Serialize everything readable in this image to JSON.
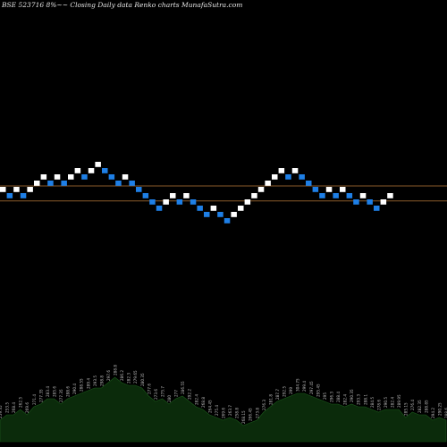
{
  "header": {
    "title": "BSE 523716  8%~~ Closing Daily data  Renko  charts MunafaSutra.com"
  },
  "colors": {
    "background": "#000000",
    "up_brick": "#ffffff",
    "down_brick": "#1e7fe6",
    "reference_line": "#8a5a2a",
    "volume_fill": "#0b2b0b",
    "volume_stroke": "#1b5a1b",
    "volume_label": "#bbbbbb"
  },
  "chart_data": {
    "type": "renko",
    "bricks": [
      {
        "level": 2,
        "dir": "up"
      },
      {
        "level": 1,
        "dir": "down"
      },
      {
        "level": 2,
        "dir": "up"
      },
      {
        "level": 1,
        "dir": "down"
      },
      {
        "level": 2,
        "dir": "up"
      },
      {
        "level": 3,
        "dir": "up"
      },
      {
        "level": 4,
        "dir": "up"
      },
      {
        "level": 3,
        "dir": "down"
      },
      {
        "level": 4,
        "dir": "up"
      },
      {
        "level": 3,
        "dir": "down"
      },
      {
        "level": 4,
        "dir": "up"
      },
      {
        "level": 5,
        "dir": "up"
      },
      {
        "level": 4,
        "dir": "down"
      },
      {
        "level": 5,
        "dir": "up"
      },
      {
        "level": 6,
        "dir": "up"
      },
      {
        "level": 5,
        "dir": "down"
      },
      {
        "level": 4,
        "dir": "down"
      },
      {
        "level": 3,
        "dir": "down"
      },
      {
        "level": 4,
        "dir": "up"
      },
      {
        "level": 3,
        "dir": "down"
      },
      {
        "level": 2,
        "dir": "down"
      },
      {
        "level": 1,
        "dir": "down"
      },
      {
        "level": 0,
        "dir": "down"
      },
      {
        "level": -1,
        "dir": "down"
      },
      {
        "level": 0,
        "dir": "up"
      },
      {
        "level": 1,
        "dir": "up"
      },
      {
        "level": 0,
        "dir": "down"
      },
      {
        "level": 1,
        "dir": "up"
      },
      {
        "level": 0,
        "dir": "down"
      },
      {
        "level": -1,
        "dir": "down"
      },
      {
        "level": -2,
        "dir": "down"
      },
      {
        "level": -1,
        "dir": "up"
      },
      {
        "level": -2,
        "dir": "down"
      },
      {
        "level": -3,
        "dir": "down"
      },
      {
        "level": -2,
        "dir": "up"
      },
      {
        "level": -1,
        "dir": "up"
      },
      {
        "level": 0,
        "dir": "up"
      },
      {
        "level": 1,
        "dir": "up"
      },
      {
        "level": 2,
        "dir": "up"
      },
      {
        "level": 3,
        "dir": "up"
      },
      {
        "level": 4,
        "dir": "up"
      },
      {
        "level": 5,
        "dir": "up"
      },
      {
        "level": 4,
        "dir": "down"
      },
      {
        "level": 5,
        "dir": "up"
      },
      {
        "level": 4,
        "dir": "down"
      },
      {
        "level": 3,
        "dir": "down"
      },
      {
        "level": 2,
        "dir": "down"
      },
      {
        "level": 1,
        "dir": "down"
      },
      {
        "level": 2,
        "dir": "up"
      },
      {
        "level": 1,
        "dir": "down"
      },
      {
        "level": 2,
        "dir": "up"
      },
      {
        "level": 1,
        "dir": "down"
      },
      {
        "level": 0,
        "dir": "down"
      },
      {
        "level": 1,
        "dir": "up"
      },
      {
        "level": 0,
        "dir": "down"
      },
      {
        "level": -1,
        "dir": "down"
      },
      {
        "level": 0,
        "dir": "up"
      },
      {
        "level": 1,
        "dir": "up"
      }
    ],
    "reference_lines": [
      {
        "level": 3.15
      },
      {
        "level": 0.75
      }
    ],
    "volume": {
      "values": [
        8,
        10,
        10,
        12,
        10,
        13,
        14,
        16,
        16,
        14,
        16,
        17,
        18,
        19,
        20,
        20,
        22,
        24,
        22,
        21,
        21,
        20,
        17,
        15,
        16,
        14,
        16,
        17,
        15,
        13,
        12,
        10,
        9,
        8,
        9,
        8,
        6,
        7,
        8,
        11,
        13,
        15,
        16,
        17,
        18,
        18,
        17,
        16,
        15,
        14,
        14,
        13,
        14,
        13,
        13,
        12,
        11,
        12,
        12,
        12,
        9,
        11,
        10,
        10,
        8,
        9,
        8
      ],
      "labels": [
        "259.35",
        "253.5",
        "268.4",
        "262.5",
        "269.6",
        "271.4",
        "277.35",
        "283.4",
        "285.6",
        "277.35",
        "288.6",
        "290.4",
        "288.55",
        "289.4",
        "293.5",
        "298.8",
        "297.6",
        "288.8",
        "286.2",
        "282.3",
        "279.65",
        "280.35",
        "277.6",
        "273.6",
        "275.7",
        "280",
        "277",
        "286.55",
        "292.2",
        "282.4",
        "268.8",
        "264.45",
        "275.4",
        "269.6",
        "263.7",
        "258.8",
        "268.15",
        "266.45",
        "273.8",
        "276.3",
        "281.8",
        "287.7",
        "292.5",
        "299",
        "304.75",
        "299.4",
        "297.45",
        "295.45",
        "295",
        "296.3",
        "288.4",
        "282.4",
        "290.35",
        "293.3",
        "288.1",
        "284.5",
        "278.6",
        "290.5",
        "282.4",
        "289.95",
        "285.15",
        "276.4",
        "282.35",
        "288.85",
        "294.2",
        "290.25",
        "288.6"
      ]
    }
  }
}
